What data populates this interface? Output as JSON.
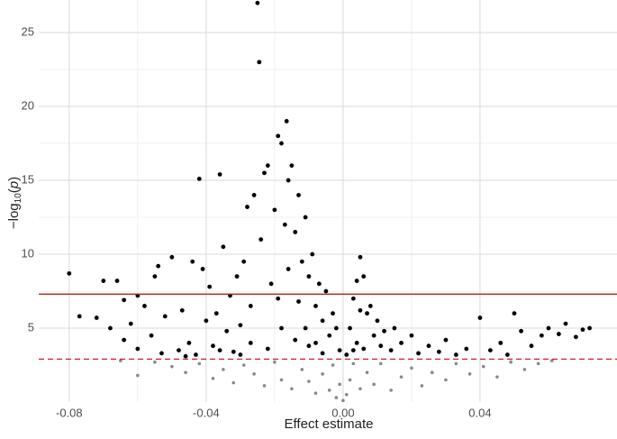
{
  "chart_data": {
    "type": "scatter",
    "x_label": "Effect estimate",
    "y_label": [
      "−log",
      "10",
      "(",
      "p",
      ")"
    ],
    "xlim": [
      -0.0889,
      0.08
    ],
    "ylim": [
      0,
      27.2
    ],
    "xticks": [
      -0.08,
      -0.04,
      {
        "value": 0,
        "label": "0.00"
      },
      0.04
    ],
    "yticks": [
      5,
      10,
      15,
      20,
      25
    ],
    "grid": true,
    "hlines": [
      {
        "value": 7.3,
        "color": "#b22222",
        "dash": false
      },
      {
        "value": 2.9,
        "color": "#d62728",
        "dash": true
      }
    ],
    "series": [
      {
        "color": "#888888",
        "x": [
          -0.06,
          -0.055,
          -0.05,
          -0.046,
          -0.042,
          -0.038,
          -0.035,
          -0.032,
          -0.029,
          -0.026,
          -0.023,
          -0.02,
          -0.018,
          -0.015,
          -0.012,
          -0.01,
          -0.008,
          -0.006,
          -0.004,
          -0.003,
          -0.002,
          -0.001,
          0.0,
          0.001,
          0.002,
          0.003,
          0.005,
          0.007,
          0.009,
          0.011,
          0.014,
          0.017,
          0.02,
          0.023,
          0.026,
          0.03,
          0.033,
          0.037,
          0.041,
          0.045,
          0.049,
          0.053,
          0.057,
          0.061,
          -0.065
        ],
        "values": [
          1.8,
          2.7,
          2.4,
          2.0,
          2.6,
          1.6,
          2.2,
          1.3,
          2.5,
          1.9,
          1.1,
          2.7,
          1.5,
          0.9,
          2.2,
          1.4,
          0.6,
          1.9,
          0.8,
          2.5,
          0.3,
          1.2,
          0.1,
          0.5,
          1.5,
          2.6,
          0.9,
          2.0,
          1.2,
          2.6,
          0.8,
          1.7,
          2.3,
          1.1,
          2.0,
          1.5,
          2.6,
          1.9,
          2.4,
          1.7,
          2.7,
          2.2,
          2.6,
          2.8,
          2.8
        ]
      },
      {
        "color": "#000000",
        "x": [
          -0.08,
          -0.077,
          -0.072,
          -0.07,
          -0.068,
          -0.066,
          -0.064,
          -0.062,
          -0.06,
          -0.058,
          -0.056,
          -0.055,
          -0.054,
          -0.052,
          -0.05,
          -0.048,
          -0.047,
          -0.045,
          -0.044,
          -0.043,
          -0.042,
          -0.041,
          -0.04,
          -0.039,
          -0.038,
          -0.037,
          -0.036,
          -0.035,
          -0.034,
          -0.033,
          -0.032,
          -0.031,
          -0.03,
          -0.029,
          -0.028,
          -0.027,
          -0.026,
          -0.025,
          -0.0245,
          -0.024,
          -0.023,
          -0.022,
          -0.021,
          -0.02,
          -0.019,
          -0.018,
          -0.017,
          -0.0165,
          -0.016,
          -0.015,
          -0.014,
          -0.013,
          -0.012,
          -0.011,
          -0.01,
          -0.009,
          -0.008,
          -0.007,
          -0.006,
          -0.005,
          -0.004,
          -0.003,
          -0.002,
          -0.001,
          -0.046,
          -0.053,
          -0.06,
          -0.064,
          -0.027,
          -0.022,
          -0.018,
          -0.014,
          -0.01,
          -0.006,
          -0.03,
          -0.036,
          -0.019,
          -0.016,
          -0.013,
          -0.011,
          -0.008,
          0.001,
          0.002,
          0.003,
          0.004,
          0.005,
          0.006,
          0.007,
          0.008,
          0.009,
          0.01,
          0.011,
          0.012,
          0.014,
          0.015,
          0.017,
          0.02,
          0.022,
          0.025,
          0.028,
          0.03,
          0.033,
          0.036,
          0.04,
          0.043,
          0.046,
          0.048,
          0.05,
          0.052,
          0.055,
          0.058,
          0.06,
          0.063,
          0.065,
          0.068,
          0.07,
          0.072,
          0.004,
          0.006,
          0.003,
          0.005
        ],
        "values": [
          8.7,
          5.8,
          5.7,
          8.2,
          5.0,
          8.2,
          6.9,
          5.3,
          7.2,
          6.5,
          4.5,
          8.5,
          9.2,
          5.8,
          9.8,
          3.5,
          6.2,
          4.0,
          9.5,
          3.2,
          15.1,
          9.0,
          5.5,
          7.8,
          3.8,
          6.0,
          15.4,
          10.5,
          4.8,
          7.2,
          3.4,
          8.5,
          5.2,
          9.5,
          13.2,
          6.5,
          14.0,
          27.0,
          23.0,
          11.0,
          15.5,
          16.0,
          8.0,
          13.0,
          18.0,
          17.5,
          12.0,
          19.0,
          15.0,
          16.0,
          11.5,
          14.0,
          9.5,
          12.5,
          8.5,
          10.0,
          6.5,
          8.0,
          5.5,
          7.5,
          4.5,
          6.0,
          5.0,
          3.5,
          3.1,
          3.3,
          3.6,
          4.2,
          4.0,
          3.6,
          5.0,
          4.2,
          3.8,
          3.3,
          3.2,
          3.5,
          7.0,
          9.0,
          6.8,
          5.0,
          4.0,
          3.2,
          5.0,
          7.0,
          8.2,
          9.8,
          8.5,
          6.0,
          6.5,
          4.5,
          5.5,
          3.8,
          4.8,
          3.5,
          5.0,
          4.0,
          4.5,
          3.3,
          3.8,
          3.4,
          4.2,
          3.2,
          3.6,
          5.7,
          3.5,
          4.0,
          3.2,
          6.0,
          4.8,
          3.8,
          4.5,
          5.0,
          4.6,
          5.3,
          4.4,
          4.9,
          5.0,
          4.0,
          3.6,
          3.5,
          6.2
        ]
      }
    ]
  }
}
